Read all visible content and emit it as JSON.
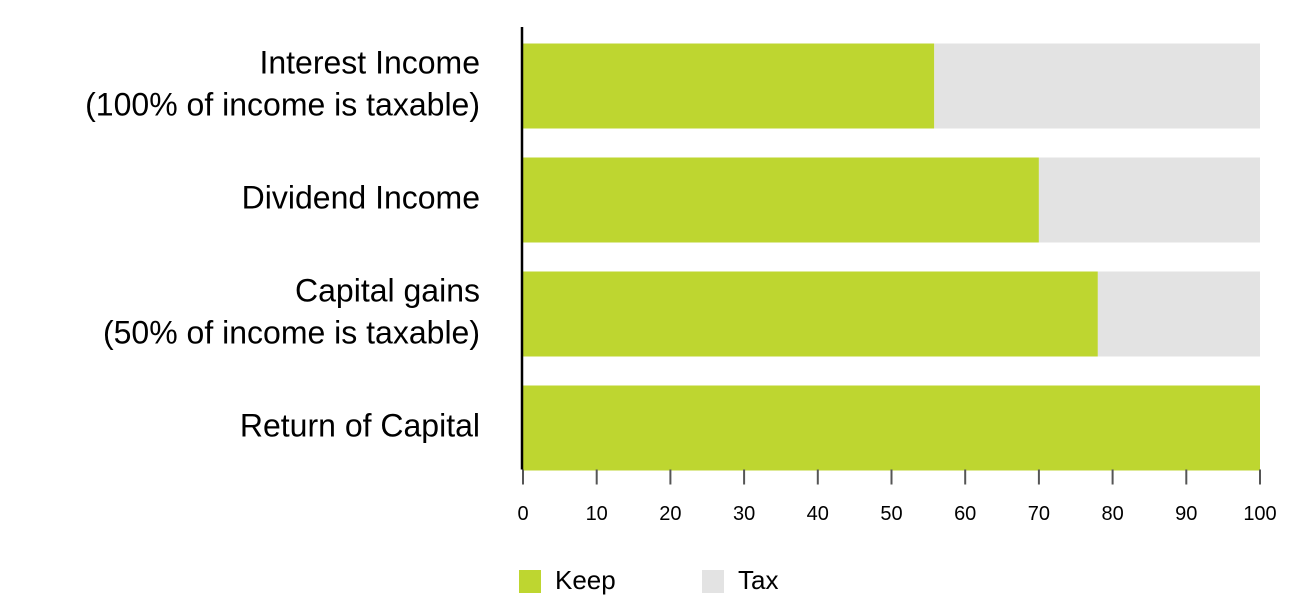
{
  "chart_data": {
    "type": "stacked-barh",
    "categories": [
      [
        "Interest Income",
        "(100% of income is taxable)"
      ],
      [
        "Dividend Income"
      ],
      [
        "Capital gains",
        "(50% of income is taxable)"
      ],
      [
        "Return of Capital"
      ]
    ],
    "series": [
      {
        "name": "Keep",
        "color": "#bed630",
        "values": [
          55.8,
          70,
          78,
          100
        ]
      },
      {
        "name": "Tax",
        "color": "#e3e3e3",
        "values": [
          44.2,
          30,
          22,
          0
        ]
      }
    ],
    "xlim": [
      0,
      100
    ],
    "xticks": [
      0,
      10,
      20,
      30,
      40,
      50,
      60,
      70,
      80,
      90,
      100
    ],
    "legend": "bottom"
  }
}
